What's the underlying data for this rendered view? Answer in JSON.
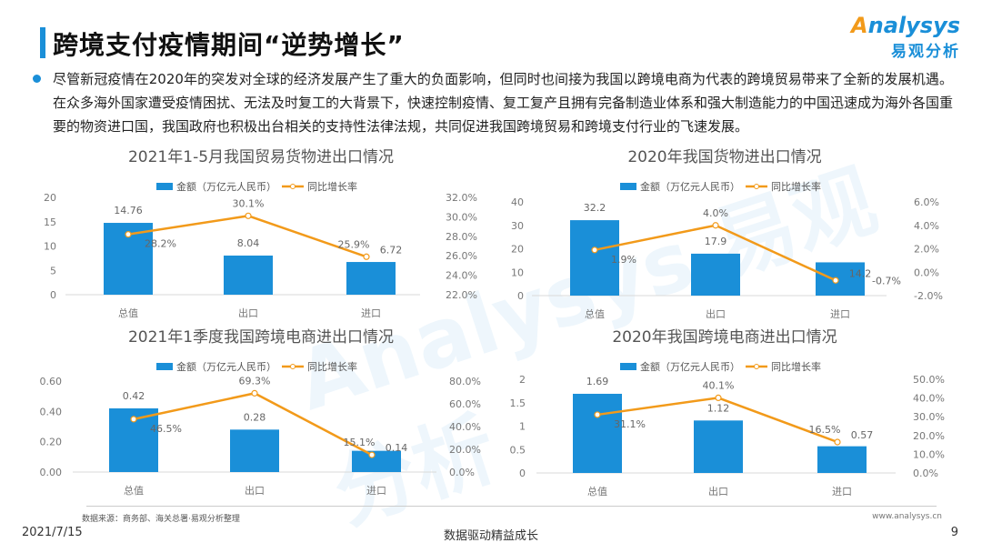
{
  "header": {
    "title": "跨境支付疫情期间“逆势增长”",
    "logo_en": "Analysys",
    "logo_cn": "易观分析"
  },
  "paragraph": "尽管新冠疫情在2020年的突发对全球的经济发展产生了重大的负面影响，但同时也间接为我国以跨境电商为代表的跨境贸易带来了全新的发展机遇。在众多海外国家遭受疫情困扰、无法及时复工的大背景下，快速控制疫情、复工复产且拥有完备制造业体系和强大制造能力的中国迅速成为海外各国重要的物资进口国，我国政府也积极出台相关的支持性法律法规，共同促进我国跨境贸易和跨境支付行业的飞速发展。",
  "colors": {
    "accent": "#1a8fd8",
    "line": "#f29a1a"
  },
  "chart_data": [
    {
      "type": "bar+line",
      "title": "2021年1-5月我国贸易货物进出口情况",
      "categories": [
        "总值",
        "出口",
        "进口"
      ],
      "series": [
        {
          "name": "金额（万亿元人民币）",
          "type": "bar",
          "values": [
            14.76,
            8.04,
            6.72
          ],
          "labels": [
            "14.76",
            "8.04",
            "6.72"
          ]
        },
        {
          "name": "同比增长率",
          "type": "line",
          "axis": "right",
          "values": [
            28.2,
            30.1,
            25.9
          ],
          "labels": [
            "28.2%",
            "30.1%",
            "25.9%"
          ]
        }
      ],
      "ylim": [
        0,
        20
      ],
      "yticks": [
        "0",
        "5",
        "10",
        "15",
        "20"
      ],
      "y2lim": [
        22,
        32
      ],
      "y2ticks": [
        "22.0%",
        "24.0%",
        "26.0%",
        "28.0%",
        "30.0%",
        "32.0%"
      ],
      "legend": "top"
    },
    {
      "type": "bar+line",
      "title": "2020年我国货物进出口情况",
      "categories": [
        "总值",
        "出口",
        "进口"
      ],
      "series": [
        {
          "name": "金额（万亿元人民币）",
          "type": "bar",
          "values": [
            32.2,
            17.9,
            14.2
          ],
          "labels": [
            "32.2",
            "17.9",
            "14.2"
          ]
        },
        {
          "name": "同比增长率",
          "type": "line",
          "axis": "right",
          "values": [
            1.9,
            4.0,
            -0.7
          ],
          "labels": [
            "1.9%",
            "4.0%",
            "-0.7%"
          ]
        }
      ],
      "ylim": [
        0,
        40
      ],
      "yticks": [
        "0",
        "10",
        "20",
        "30",
        "40"
      ],
      "y2lim": [
        -2,
        6
      ],
      "y2ticks": [
        "-2.0%",
        "0.0%",
        "2.0%",
        "4.0%",
        "6.0%"
      ],
      "legend": "top"
    },
    {
      "type": "bar+line",
      "title": "2021年1季度我国跨境电商进出口情况",
      "categories": [
        "总值",
        "出口",
        "进口"
      ],
      "series": [
        {
          "name": "金额（万亿元人民币）",
          "type": "bar",
          "values": [
            0.42,
            0.28,
            0.14
          ],
          "labels": [
            "0.42",
            "0.28",
            "0.14"
          ]
        },
        {
          "name": "同比增长率",
          "type": "line",
          "axis": "right",
          "values": [
            46.5,
            69.3,
            15.1
          ],
          "labels": [
            "46.5%",
            "69.3%",
            "15.1%"
          ]
        }
      ],
      "ylim": [
        0,
        0.6
      ],
      "yticks": [
        "0.00",
        "0.20",
        "0.40",
        "0.60"
      ],
      "y2lim": [
        0,
        80
      ],
      "y2ticks": [
        "0.0%",
        "20.0%",
        "40.0%",
        "60.0%",
        "80.0%"
      ],
      "legend": "top"
    },
    {
      "type": "bar+line",
      "title": "2020年我国跨境电商进出口情况",
      "categories": [
        "总值",
        "出口",
        "进口"
      ],
      "series": [
        {
          "name": "金额（万亿元人民币）",
          "type": "bar",
          "values": [
            1.69,
            1.12,
            0.57
          ],
          "labels": [
            "1.69",
            "1.12",
            "0.57"
          ]
        },
        {
          "name": "同比增长率",
          "type": "line",
          "axis": "right",
          "values": [
            31.1,
            40.1,
            16.5
          ],
          "labels": [
            "31.1%",
            "40.1%",
            "16.5%"
          ]
        }
      ],
      "ylim": [
        0,
        2
      ],
      "yticks": [
        "0",
        "0.5",
        "1",
        "1.5",
        "2"
      ],
      "y2lim": [
        0,
        50
      ],
      "y2ticks": [
        "0.0%",
        "10.0%",
        "20.0%",
        "30.0%",
        "40.0%",
        "50.0%"
      ],
      "legend": "top"
    }
  ],
  "footer": {
    "source": "数据来源：商务部、海关总署·易观分析整理",
    "site": "www.analysys.cn",
    "date": "2021/7/15",
    "slogan": "数据驱动精益成长",
    "page": "9"
  }
}
